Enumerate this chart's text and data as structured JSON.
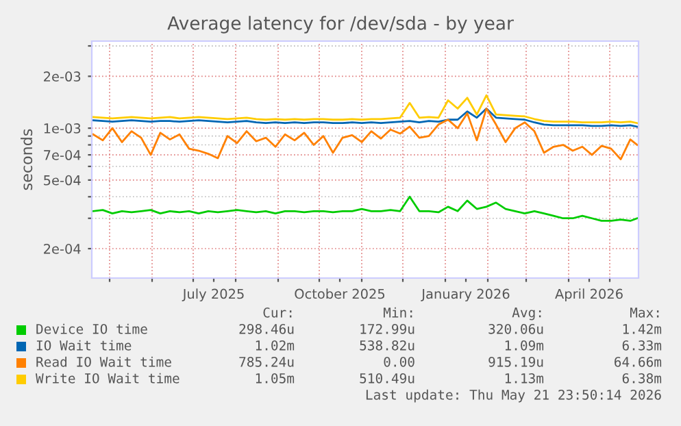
{
  "chart_data": {
    "type": "line",
    "title": "Average latency for /dev/sda - by year",
    "ylabel": "seconds",
    "x": [
      "2025-04-19",
      "2025-04-26",
      "2025-05-03",
      "2025-05-10",
      "2025-05-17",
      "2025-05-24",
      "2025-05-31",
      "2025-06-07",
      "2025-06-14",
      "2025-06-21",
      "2025-06-28",
      "2025-07-05",
      "2025-07-12",
      "2025-07-19",
      "2025-07-26",
      "2025-08-02",
      "2025-08-09",
      "2025-08-16",
      "2025-08-23",
      "2025-08-30",
      "2025-09-06",
      "2025-09-13",
      "2025-09-20",
      "2025-09-27",
      "2025-10-04",
      "2025-10-11",
      "2025-10-18",
      "2025-10-25",
      "2025-11-01",
      "2025-11-08",
      "2025-11-15",
      "2025-11-22",
      "2025-11-29",
      "2025-12-06",
      "2025-12-13",
      "2025-12-20",
      "2025-12-27",
      "2026-01-03",
      "2026-01-10",
      "2026-01-17",
      "2026-01-24",
      "2026-01-31",
      "2026-02-07",
      "2026-02-14",
      "2026-02-21",
      "2026-02-28",
      "2026-03-07",
      "2026-03-14",
      "2026-03-21",
      "2026-03-28",
      "2026-04-04",
      "2026-04-11",
      "2026-04-18",
      "2026-04-25",
      "2026-05-02",
      "2026-05-09",
      "2026-05-16",
      "2026-05-21"
    ],
    "series": [
      {
        "name": "Device IO time",
        "color": "#00cc00",
        "values": [
          0.00033,
          0.000335,
          0.00032,
          0.00033,
          0.000325,
          0.00033,
          0.000335,
          0.00032,
          0.00033,
          0.000325,
          0.00033,
          0.00032,
          0.00033,
          0.000325,
          0.00033,
          0.000335,
          0.00033,
          0.000325,
          0.00033,
          0.00032,
          0.00033,
          0.00033,
          0.000325,
          0.00033,
          0.00033,
          0.000325,
          0.00033,
          0.00033,
          0.00034,
          0.00033,
          0.00033,
          0.000335,
          0.00033,
          0.0004,
          0.00033,
          0.00033,
          0.000325,
          0.00035,
          0.00033,
          0.00038,
          0.00034,
          0.00035,
          0.00037,
          0.00034,
          0.00033,
          0.00032,
          0.00033,
          0.00032,
          0.00031,
          0.0003,
          0.0003,
          0.00031,
          0.0003,
          0.00029,
          0.00029,
          0.000295,
          0.00029,
          0.0003
        ]
      },
      {
        "name": "IO Wait time",
        "color": "#0066b3",
        "values": [
          0.00111,
          0.0011,
          0.00109,
          0.0011,
          0.00111,
          0.0011,
          0.00109,
          0.0011,
          0.0011,
          0.00109,
          0.0011,
          0.00111,
          0.0011,
          0.00109,
          0.00108,
          0.00109,
          0.0011,
          0.00108,
          0.00107,
          0.00108,
          0.00107,
          0.00108,
          0.00107,
          0.00108,
          0.00108,
          0.00107,
          0.00107,
          0.00108,
          0.00107,
          0.00108,
          0.00107,
          0.00108,
          0.00109,
          0.0011,
          0.00108,
          0.0011,
          0.00109,
          0.00112,
          0.00112,
          0.00125,
          0.00115,
          0.0013,
          0.00115,
          0.00114,
          0.00113,
          0.00112,
          0.00108,
          0.00105,
          0.00104,
          0.00104,
          0.00104,
          0.00104,
          0.00103,
          0.00103,
          0.00104,
          0.00103,
          0.00104,
          0.00102
        ]
      },
      {
        "name": "Read IO Wait time",
        "color": "#ff8000",
        "values": [
          0.00092,
          0.00085,
          0.001,
          0.00083,
          0.00096,
          0.00088,
          0.0007,
          0.00094,
          0.00086,
          0.00092,
          0.00076,
          0.00074,
          0.00071,
          0.00067,
          0.0009,
          0.00082,
          0.00096,
          0.00084,
          0.00088,
          0.00078,
          0.00092,
          0.00085,
          0.00094,
          0.0008,
          0.0009,
          0.00072,
          0.00088,
          0.00091,
          0.00083,
          0.00096,
          0.00087,
          0.00098,
          0.00093,
          0.00102,
          0.00088,
          0.0009,
          0.00105,
          0.00112,
          0.001,
          0.00122,
          0.00085,
          0.0013,
          0.00105,
          0.00083,
          0.001,
          0.00108,
          0.00096,
          0.00072,
          0.00078,
          0.0008,
          0.00074,
          0.00078,
          0.0007,
          0.00079,
          0.00076,
          0.00066,
          0.00086,
          0.0008
        ]
      },
      {
        "name": "Write IO Wait time",
        "color": "#ffcc00",
        "values": [
          0.00116,
          0.00115,
          0.00114,
          0.00115,
          0.00116,
          0.00115,
          0.00114,
          0.00115,
          0.00116,
          0.00114,
          0.00115,
          0.00116,
          0.00115,
          0.00114,
          0.00113,
          0.00114,
          0.00115,
          0.00113,
          0.00112,
          0.00113,
          0.00112,
          0.00113,
          0.00112,
          0.00113,
          0.00113,
          0.00112,
          0.00112,
          0.00113,
          0.00112,
          0.00113,
          0.00113,
          0.00114,
          0.00115,
          0.0014,
          0.00115,
          0.00116,
          0.00115,
          0.00145,
          0.0013,
          0.0015,
          0.0012,
          0.00155,
          0.0012,
          0.00119,
          0.00118,
          0.00117,
          0.00113,
          0.0011,
          0.00109,
          0.00109,
          0.00109,
          0.00108,
          0.00108,
          0.00108,
          0.00109,
          0.00108,
          0.00109,
          0.00107
        ]
      }
    ],
    "ylim": [
      0.000135,
      0.0032
    ],
    "log": true,
    "yticks": [
      {
        "value": 0.003,
        "label": null
      },
      {
        "value": 0.002,
        "label": "2e-03"
      },
      {
        "value": 0.001,
        "label": "1e-03"
      },
      {
        "value": 0.0009,
        "label": null
      },
      {
        "value": 0.0008,
        "label": null
      },
      {
        "value": 0.0007,
        "label": "7e-04"
      },
      {
        "value": 0.0006,
        "label": null
      },
      {
        "value": 0.0005,
        "label": "5e-04"
      },
      {
        "value": 0.0004,
        "label": null
      },
      {
        "value": 0.0003,
        "label": null
      },
      {
        "value": 0.0002,
        "label": "2e-04"
      }
    ],
    "xlim": [
      "2025-04-18",
      "2026-05-22"
    ],
    "xticks": [
      {
        "value": "2025-05-01",
        "label": null
      },
      {
        "value": "2025-06-01",
        "label": null
      },
      {
        "value": "2025-07-01",
        "label": null
      },
      {
        "value": "2025-07-16",
        "label": "July 2025"
      },
      {
        "value": "2025-08-01",
        "label": null
      },
      {
        "value": "2025-09-01",
        "label": null
      },
      {
        "value": "2025-10-01",
        "label": null
      },
      {
        "value": "2025-10-16",
        "label": "October 2025"
      },
      {
        "value": "2025-11-01",
        "label": null
      },
      {
        "value": "2025-12-01",
        "label": null
      },
      {
        "value": "2026-01-01",
        "label": null
      },
      {
        "value": "2026-01-16",
        "label": "January 2026"
      },
      {
        "value": "2026-02-01",
        "label": null
      },
      {
        "value": "2026-03-01",
        "label": null
      },
      {
        "value": "2026-04-01",
        "label": null
      },
      {
        "value": "2026-04-16",
        "label": "April 2026"
      },
      {
        "value": "2026-05-01",
        "label": null
      }
    ],
    "grid": true,
    "legend": "bottom",
    "line_style": "solid",
    "marker": "none",
    "annotations": [
      "Cur:",
      "Min:",
      "Avg:",
      "Max:",
      "298.46u",
      "172.99u",
      "320.06u",
      "1.42m",
      "1.02m",
      "538.82u",
      "1.09m",
      "6.33m",
      "785.24u",
      "0.00",
      "915.19u",
      "64.66m",
      "1.05m",
      "510.49u",
      "1.13m",
      "6.38m",
      "Last update: Thu May 21 23:50:14 2026"
    ]
  }
}
